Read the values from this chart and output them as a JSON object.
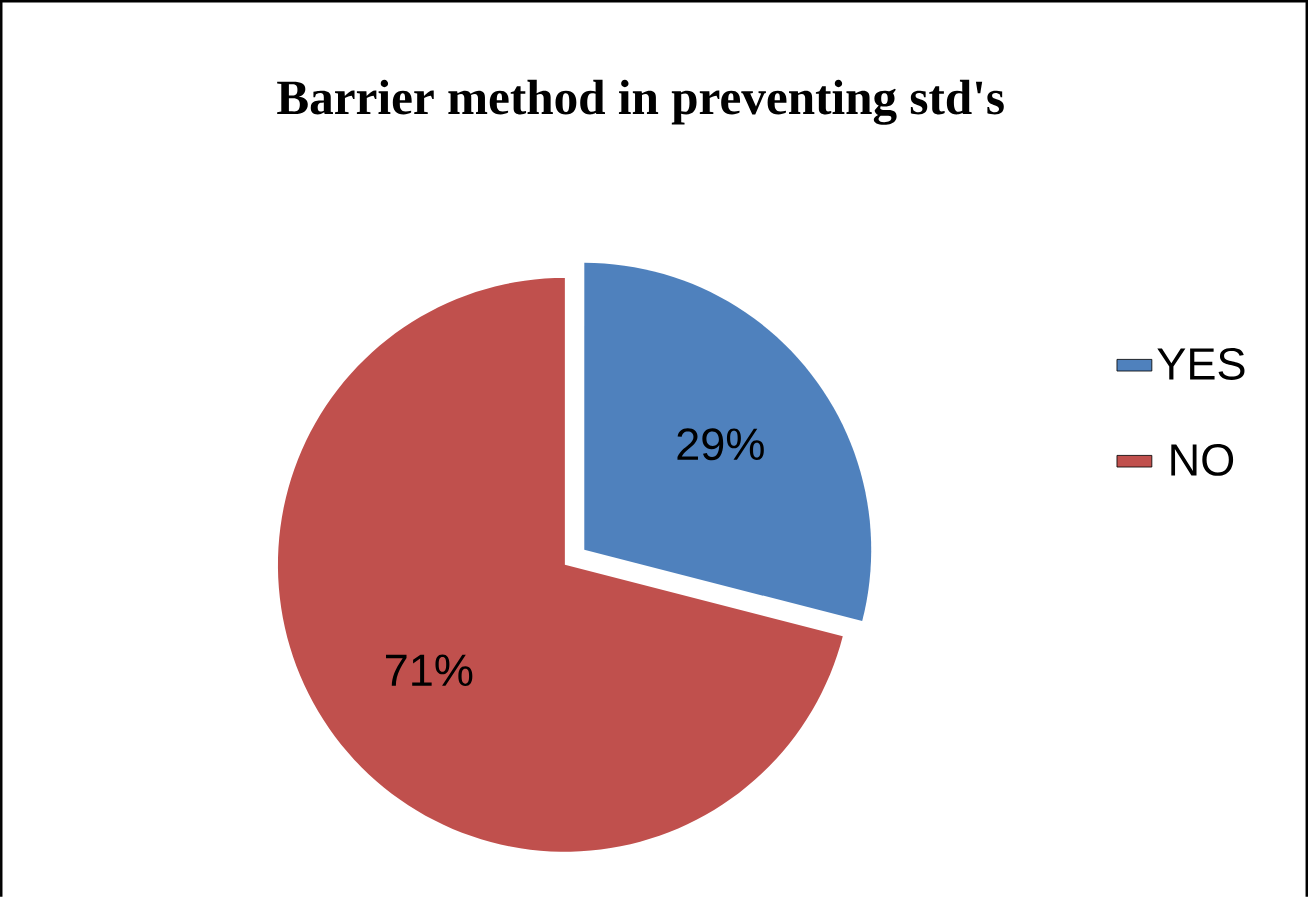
{
  "chart_data": {
    "type": "pie",
    "title": "Barrier method in preventing std's",
    "categories": [
      "YES",
      "NO"
    ],
    "values": [
      29,
      71
    ],
    "colors": [
      "#4f81bd",
      "#c0504d"
    ],
    "value_labels": [
      "29%",
      "71%"
    ],
    "legend": "right"
  }
}
